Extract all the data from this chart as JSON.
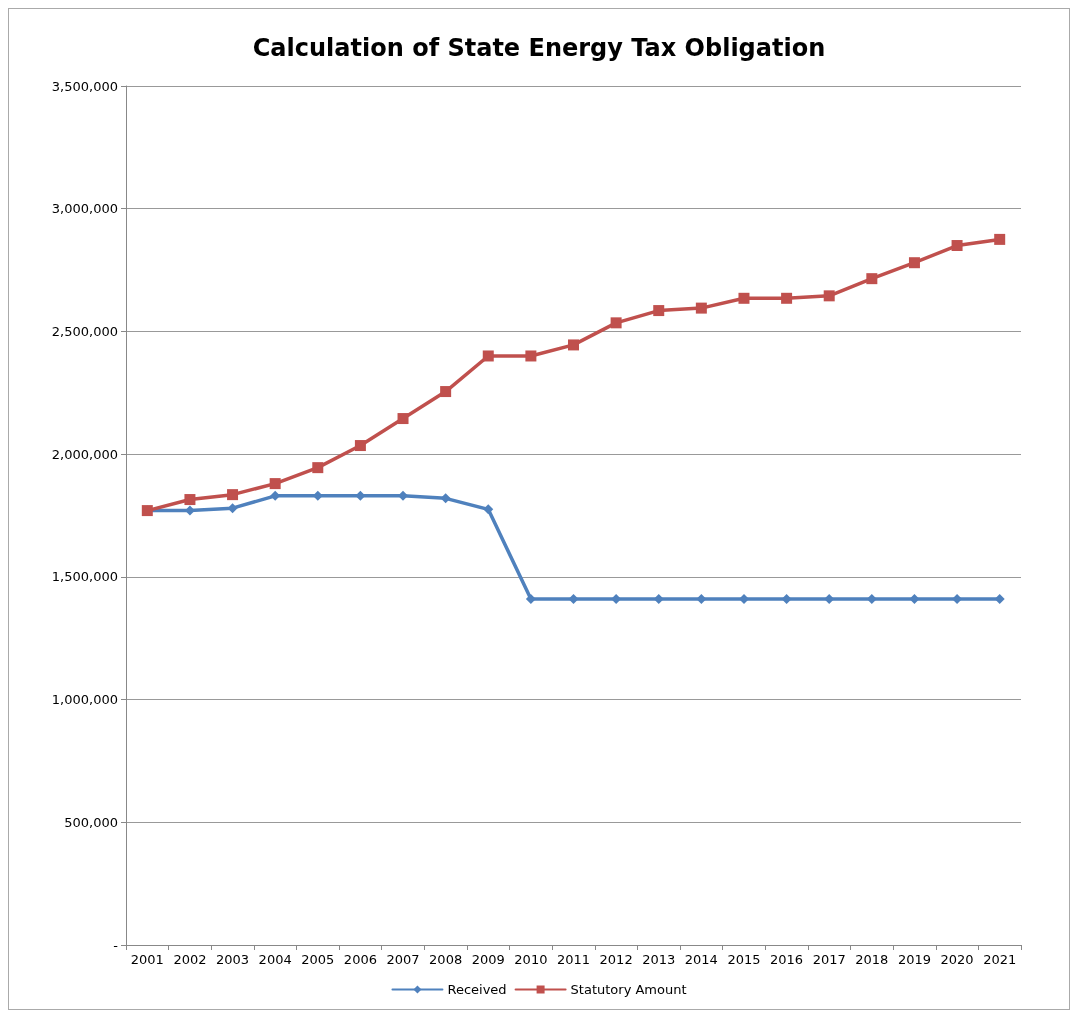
{
  "chart_data": {
    "type": "line",
    "title": "Calculation of State Energy Tax Obligation",
    "categories": [
      "2001",
      "2002",
      "2003",
      "2004",
      "2005",
      "2006",
      "2007",
      "2008",
      "2009",
      "2010",
      "2011",
      "2012",
      "2013",
      "2014",
      "2015",
      "2016",
      "2017",
      "2018",
      "2019",
      "2020",
      "2021"
    ],
    "series": [
      {
        "name": "Received",
        "color": "#4f81bd",
        "marker": "diamond",
        "values": [
          1770000,
          1770000,
          1780000,
          1830000,
          1830000,
          1830000,
          1830000,
          1820000,
          1775000,
          1410000,
          1410000,
          1410000,
          1410000,
          1410000,
          1410000,
          1410000,
          1410000,
          1410000,
          1410000,
          1410000,
          1410000
        ]
      },
      {
        "name": "Statutory Amount",
        "color": "#c0504d",
        "marker": "square",
        "values": [
          1770000,
          1815000,
          1835000,
          1880000,
          1945000,
          2035000,
          2145000,
          2255000,
          2400000,
          2400000,
          2445000,
          2535000,
          2585000,
          2595000,
          2635000,
          2635000,
          2645000,
          2715000,
          2780000,
          2850000,
          2875000
        ]
      }
    ],
    "ylim": [
      0,
      3500000
    ],
    "yticks": [
      {
        "value": 0,
        "label": "-"
      },
      {
        "value": 500000,
        "label": "500,000"
      },
      {
        "value": 1000000,
        "label": "1,000,000"
      },
      {
        "value": 1500000,
        "label": "1,500,000"
      },
      {
        "value": 2000000,
        "label": "2,000,000"
      },
      {
        "value": 2500000,
        "label": "2,500,000"
      },
      {
        "value": 3000000,
        "label": "3,000,000"
      },
      {
        "value": 3500000,
        "label": "3,500,000"
      }
    ],
    "grid": "y",
    "legend": "bottom",
    "line_style": "solid"
  }
}
